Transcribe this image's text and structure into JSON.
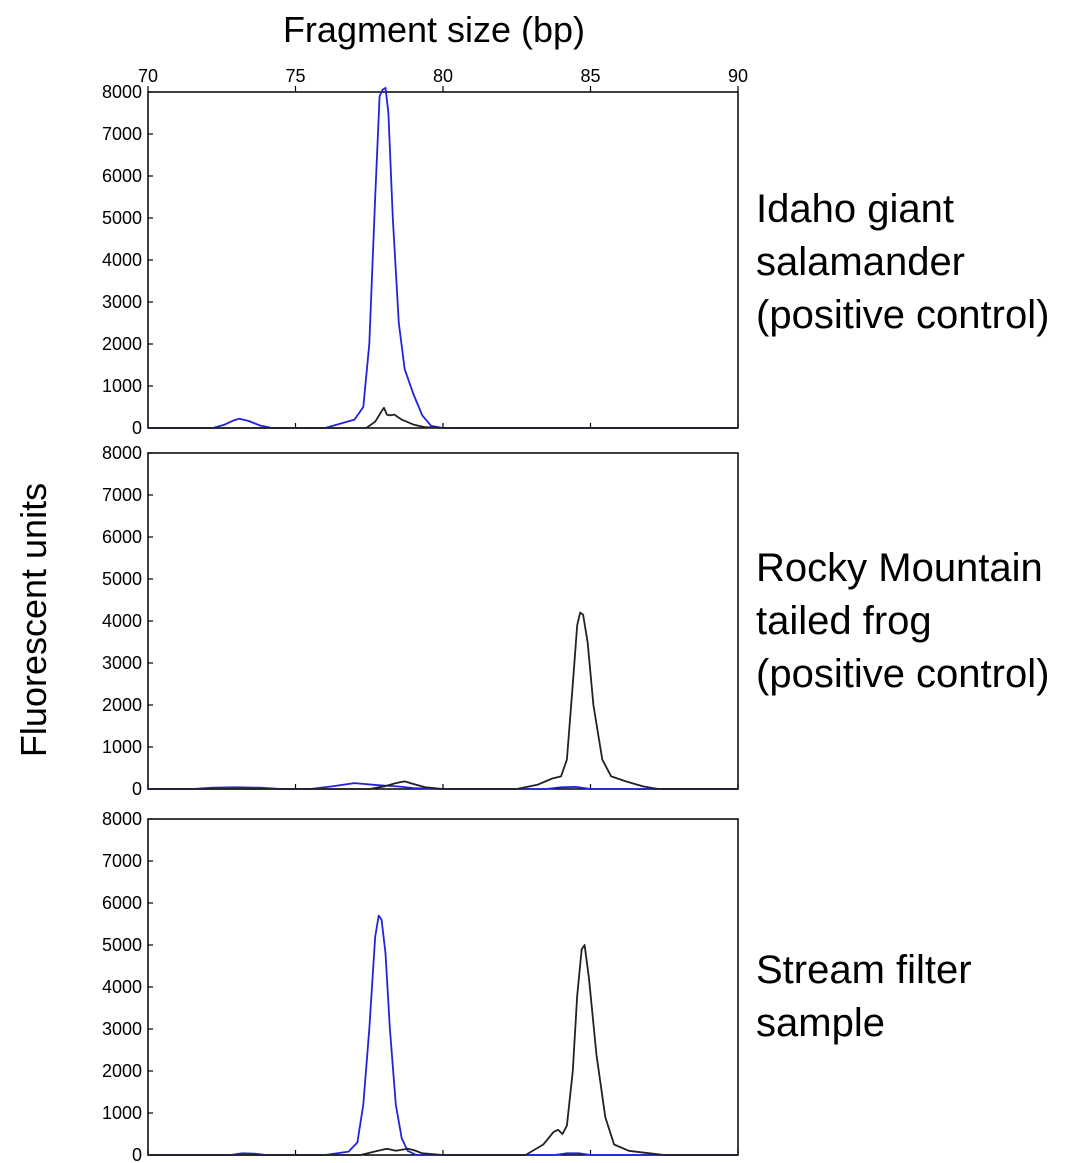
{
  "chart_data": {
    "type": "line",
    "xlabel": "Fragment size (bp)",
    "ylabel": "Fluorescent units",
    "xlim": [
      70,
      90
    ],
    "ylim": [
      0,
      8000
    ],
    "x_ticks": [
      "70",
      "75",
      "80",
      "85",
      "90"
    ],
    "y_ticks": [
      "0",
      "1000",
      "2000",
      "3000",
      "4000",
      "5000",
      "6000",
      "7000",
      "8000"
    ],
    "grid": false,
    "legend": "none",
    "colors": {
      "blue": "#2222dd",
      "black": "#222222"
    },
    "panels": [
      {
        "label_lines": [
          "Idaho giant",
          "salamander",
          "(positive control)"
        ],
        "series": [
          {
            "color": "blue",
            "x": [
              70.0,
              72.2,
              72.6,
              72.9,
              73.1,
              73.4,
              73.8,
              74.2,
              76.0,
              77.0,
              77.3,
              77.5,
              77.7,
              77.85,
              77.95,
              78.05,
              78.15,
              78.3,
              78.5,
              78.7,
              79.0,
              79.3,
              79.6,
              80.0,
              90.0
            ],
            "y": [
              0,
              0,
              80,
              180,
              220,
              170,
              60,
              0,
              0,
              200,
              500,
              2000,
              5500,
              7900,
              8050,
              8100,
              7500,
              5000,
              2500,
              1400,
              800,
              300,
              50,
              0,
              0
            ]
          },
          {
            "color": "black",
            "x": [
              70.0,
              77.4,
              77.7,
              77.9,
              78.0,
              78.1,
              78.2,
              78.35,
              78.6,
              79.0,
              79.4,
              80.0,
              90.0
            ],
            "y": [
              0,
              0,
              150,
              380,
              480,
              320,
              300,
              320,
              200,
              80,
              20,
              0,
              0
            ]
          }
        ]
      },
      {
        "label_lines": [
          "Rocky Mountain",
          "tailed frog",
          "(positive control)"
        ],
        "series": [
          {
            "color": "blue",
            "x": [
              70.0,
              71.5,
              72.2,
              73.0,
              73.8,
              74.5,
              75.5,
              76.2,
              77.0,
              77.8,
              78.5,
              79.0,
              80.0,
              83.5,
              84.0,
              84.5,
              85.0,
              90.0
            ],
            "y": [
              0,
              0,
              30,
              40,
              30,
              0,
              0,
              60,
              140,
              90,
              60,
              20,
              0,
              0,
              40,
              50,
              0,
              0
            ]
          },
          {
            "color": "black",
            "x": [
              70.0,
              77.5,
              78.0,
              78.4,
              78.7,
              79.0,
              79.4,
              80.0,
              82.5,
              83.2,
              83.7,
              84.0,
              84.2,
              84.4,
              84.55,
              84.65,
              84.75,
              84.9,
              85.1,
              85.4,
              85.7,
              86.2,
              86.8,
              87.3,
              90.0
            ],
            "y": [
              0,
              0,
              60,
              140,
              180,
              120,
              40,
              0,
              0,
              100,
              250,
              300,
              700,
              2500,
              3900,
              4200,
              4150,
              3500,
              2000,
              700,
              300,
              180,
              60,
              0,
              0
            ]
          }
        ]
      },
      {
        "label_lines": [
          "Stream filter",
          "sample"
        ],
        "series": [
          {
            "color": "blue",
            "x": [
              70.0,
              72.8,
              73.2,
              73.6,
              74.0,
              76.0,
              76.8,
              77.1,
              77.3,
              77.5,
              77.7,
              77.82,
              77.92,
              78.05,
              78.2,
              78.4,
              78.6,
              78.8,
              79.1,
              80.0,
              83.8,
              84.2,
              84.6,
              85.0,
              90.0
            ],
            "y": [
              0,
              0,
              40,
              30,
              0,
              0,
              80,
              300,
              1200,
              3000,
              5200,
              5700,
              5600,
              4800,
              3000,
              1200,
              400,
              100,
              0,
              0,
              0,
              40,
              40,
              0,
              0
            ]
          },
          {
            "color": "black",
            "x": [
              70.0,
              77.2,
              77.8,
              78.1,
              78.4,
              78.8,
              79.0,
              79.3,
              80.0,
              82.8,
              83.4,
              83.75,
              83.9,
              84.05,
              84.2,
              84.4,
              84.55,
              84.7,
              84.8,
              84.95,
              85.2,
              85.5,
              85.8,
              86.3,
              87.0,
              87.5,
              90.0
            ],
            "y": [
              0,
              0,
              100,
              150,
              100,
              150,
              120,
              40,
              0,
              0,
              250,
              550,
              600,
              500,
              700,
              2000,
              3800,
              4900,
              5000,
              4200,
              2400,
              900,
              250,
              100,
              40,
              0,
              0
            ]
          }
        ]
      }
    ]
  }
}
